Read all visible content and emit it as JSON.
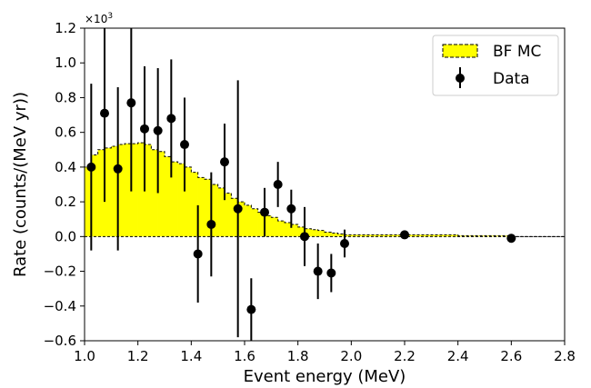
{
  "chart_data": {
    "type": "scatter",
    "xlabel": "Event energy (MeV)",
    "ylabel": "Rate (counts/(MeV yr))",
    "y_scale_base": "×10",
    "y_scale_exp": "3",
    "xlim": [
      1.0,
      2.8
    ],
    "ylim": [
      -0.6,
      1.2
    ],
    "x_ticks": [
      "1.0",
      "1.2",
      "1.4",
      "1.6",
      "1.8",
      "2.0",
      "2.2",
      "2.4",
      "2.6",
      "2.8"
    ],
    "y_ticks": [
      "−0.6",
      "−0.4",
      "−0.2",
      "0.0",
      "0.2",
      "0.4",
      "0.6",
      "0.8",
      "1.0",
      "1.2"
    ],
    "x_tick_values": [
      1.0,
      1.2,
      1.4,
      1.6,
      1.8,
      2.0,
      2.2,
      2.4,
      2.6,
      2.8
    ],
    "y_tick_values": [
      -0.6,
      -0.4,
      -0.2,
      0.0,
      0.2,
      0.4,
      0.6,
      0.8,
      1.0,
      1.2
    ],
    "grid": false,
    "legend_position": "top-right",
    "legend": {
      "mc_label": "BF MC",
      "data_label": "Data"
    },
    "mc_fill_color": "#ffff00",
    "mc_edges": [
      1.0,
      1.025,
      1.05,
      1.075,
      1.1,
      1.125,
      1.15,
      1.175,
      1.2,
      1.225,
      1.25,
      1.275,
      1.3,
      1.325,
      1.35,
      1.375,
      1.4,
      1.425,
      1.45,
      1.475,
      1.5,
      1.525,
      1.55,
      1.575,
      1.6,
      1.625,
      1.65,
      1.675,
      1.7,
      1.725,
      1.75,
      1.775,
      1.8,
      1.825,
      1.85,
      1.875,
      1.9,
      1.925,
      1.95,
      1.975,
      2.0,
      2.2,
      2.4,
      2.6,
      2.8
    ],
    "mc_values": [
      0.4,
      0.47,
      0.5,
      0.51,
      0.52,
      0.53,
      0.535,
      0.535,
      0.54,
      0.53,
      0.5,
      0.49,
      0.46,
      0.43,
      0.42,
      0.4,
      0.37,
      0.34,
      0.33,
      0.3,
      0.28,
      0.25,
      0.22,
      0.2,
      0.18,
      0.16,
      0.14,
      0.12,
      0.11,
      0.09,
      0.08,
      0.07,
      0.055,
      0.045,
      0.04,
      0.035,
      0.025,
      0.02,
      0.015,
      0.01,
      0.01,
      0.01,
      0.005,
      0.0
    ],
    "series": [
      {
        "name": "Data",
        "x": [
          1.025,
          1.075,
          1.125,
          1.175,
          1.225,
          1.275,
          1.325,
          1.375,
          1.425,
          1.475,
          1.525,
          1.575,
          1.625,
          1.675,
          1.725,
          1.775,
          1.825,
          1.875,
          1.925,
          1.975,
          2.2,
          2.6
        ],
        "y": [
          0.4,
          0.71,
          0.39,
          0.77,
          0.62,
          0.61,
          0.68,
          0.53,
          -0.1,
          0.07,
          0.43,
          0.16,
          -0.42,
          0.14,
          0.3,
          0.16,
          0.0,
          -0.2,
          -0.21,
          -0.04,
          0.01,
          -0.01
        ],
        "y_low": [
          -0.08,
          0.2,
          -0.08,
          0.26,
          0.26,
          0.25,
          0.34,
          0.26,
          -0.38,
          -0.23,
          0.21,
          -0.58,
          -0.6,
          0.0,
          0.17,
          0.05,
          -0.17,
          -0.36,
          -0.32,
          -0.12,
          -0.01,
          -0.02
        ],
        "y_high": [
          0.88,
          1.2,
          0.86,
          1.2,
          0.98,
          0.97,
          1.02,
          0.8,
          0.18,
          0.37,
          0.65,
          0.9,
          -0.24,
          0.28,
          0.43,
          0.27,
          0.17,
          -0.04,
          -0.1,
          0.04,
          0.03,
          0.0
        ]
      }
    ]
  }
}
